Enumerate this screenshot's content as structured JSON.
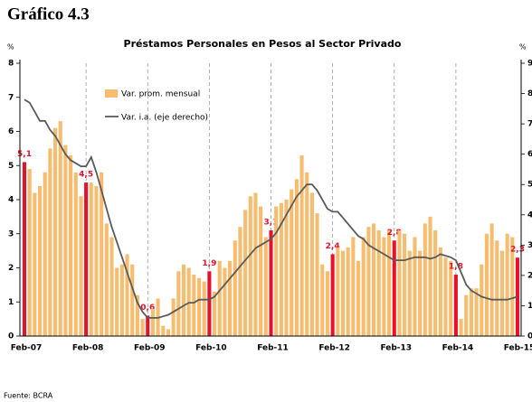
{
  "chart_data": {
    "type": "bar",
    "figure_label": "Gráfico 4.3",
    "title": "Préstamos Personales en Pesos al Sector Privado",
    "ylabel": "%",
    "y2label": "%",
    "source": "Fuente: BCRA",
    "categories": [
      "Feb-07",
      null,
      null,
      null,
      null,
      null,
      null,
      null,
      null,
      null,
      null,
      null,
      "Feb-08",
      null,
      null,
      null,
      null,
      null,
      null,
      null,
      null,
      null,
      null,
      null,
      "Feb-09",
      null,
      null,
      null,
      null,
      null,
      null,
      null,
      null,
      null,
      null,
      null,
      "Feb-10",
      null,
      null,
      null,
      null,
      null,
      null,
      null,
      null,
      null,
      null,
      null,
      "Feb-11",
      null,
      null,
      null,
      null,
      null,
      null,
      null,
      null,
      null,
      null,
      null,
      "Feb-12",
      null,
      null,
      null,
      null,
      null,
      null,
      null,
      null,
      null,
      null,
      null,
      "Feb-13",
      null,
      null,
      null,
      null,
      null,
      null,
      null,
      null,
      null,
      null,
      null,
      "Feb-14",
      null,
      null,
      null,
      null,
      null,
      null,
      null,
      null,
      null,
      null,
      null,
      "Feb-15"
    ],
    "series": [
      {
        "name": "Var. prom. mensual",
        "color": "#f7bc6e",
        "highlight_color": "#e8102a",
        "values": [
          5.1,
          4.9,
          4.2,
          4.4,
          4.8,
          5.5,
          6.1,
          6.3,
          5.6,
          5.3,
          4.8,
          4.1,
          4.5,
          4.5,
          4.4,
          4.8,
          3.3,
          2.9,
          2.0,
          2.1,
          2.4,
          2.1,
          1.2,
          0.5,
          0.6,
          0.8,
          1.1,
          0.3,
          0.2,
          1.1,
          1.9,
          2.1,
          2.0,
          1.8,
          1.7,
          1.6,
          1.9,
          1.3,
          2.2,
          2.0,
          2.2,
          2.8,
          3.2,
          3.7,
          4.1,
          4.2,
          3.8,
          2.9,
          3.1,
          3.8,
          3.9,
          4.0,
          4.3,
          4.6,
          5.3,
          4.8,
          4.2,
          3.6,
          2.1,
          1.9,
          2.4,
          2.6,
          2.5,
          2.6,
          2.9,
          2.2,
          2.9,
          3.2,
          3.3,
          3.1,
          2.9,
          3.1,
          2.8,
          3.1,
          3.0,
          2.5,
          2.9,
          2.5,
          3.3,
          3.5,
          3.1,
          2.6,
          2.3,
          2.2,
          1.8,
          0.5,
          1.2,
          1.4,
          1.4,
          2.1,
          3.0,
          3.3,
          2.8,
          2.5,
          3.0,
          2.9,
          2.3
        ],
        "value_labels": [
          "5,1",
          null,
          null,
          null,
          null,
          null,
          null,
          null,
          null,
          null,
          null,
          null,
          "4,5",
          null,
          null,
          null,
          null,
          null,
          null,
          null,
          null,
          null,
          null,
          null,
          "0,6",
          null,
          null,
          null,
          null,
          null,
          null,
          null,
          null,
          null,
          null,
          null,
          "1,9",
          null,
          null,
          null,
          null,
          null,
          null,
          null,
          null,
          null,
          null,
          null,
          "3,1",
          null,
          null,
          null,
          null,
          null,
          null,
          null,
          null,
          null,
          null,
          null,
          "2,4",
          null,
          null,
          null,
          null,
          null,
          null,
          null,
          null,
          null,
          null,
          null,
          "2,8",
          null,
          null,
          null,
          null,
          null,
          null,
          null,
          null,
          null,
          null,
          null,
          "1,8",
          null,
          null,
          null,
          null,
          null,
          null,
          null,
          null,
          null,
          null,
          null,
          "2,3"
        ]
      },
      {
        "name": "Var. i.a. (eje derecho)",
        "color": "#5a5a5a",
        "type": "line",
        "axis": "y2",
        "values": [
          78,
          77,
          74,
          71,
          71,
          68,
          66,
          63,
          60,
          58,
          57,
          56,
          56,
          59,
          54,
          48,
          42,
          36,
          31,
          26,
          21,
          16,
          11,
          8,
          6,
          6,
          6,
          6.5,
          7,
          8,
          9,
          10,
          11,
          11,
          12,
          12,
          12,
          13,
          15,
          17,
          19,
          21,
          23,
          25,
          27,
          29,
          30,
          31,
          32,
          34,
          37,
          40,
          43,
          46,
          48,
          50,
          50,
          48,
          45,
          42,
          41,
          41,
          39,
          37,
          35,
          33,
          32,
          30,
          29,
          28,
          27,
          26,
          25,
          25,
          25,
          25.5,
          26,
          26,
          26,
          25.5,
          26,
          27,
          26.5,
          26,
          25,
          21,
          17,
          15,
          14,
          13,
          12.5,
          12,
          12,
          12,
          12,
          12.5,
          13
        ]
      }
    ],
    "ylim": [
      0,
      8
    ],
    "yticks": [
      0,
      1,
      2,
      3,
      4,
      5,
      6,
      7,
      8
    ],
    "y2lim": [
      0,
      90
    ],
    "y2ticks": [
      0,
      10,
      20,
      30,
      40,
      50,
      60,
      70,
      80,
      90
    ]
  }
}
